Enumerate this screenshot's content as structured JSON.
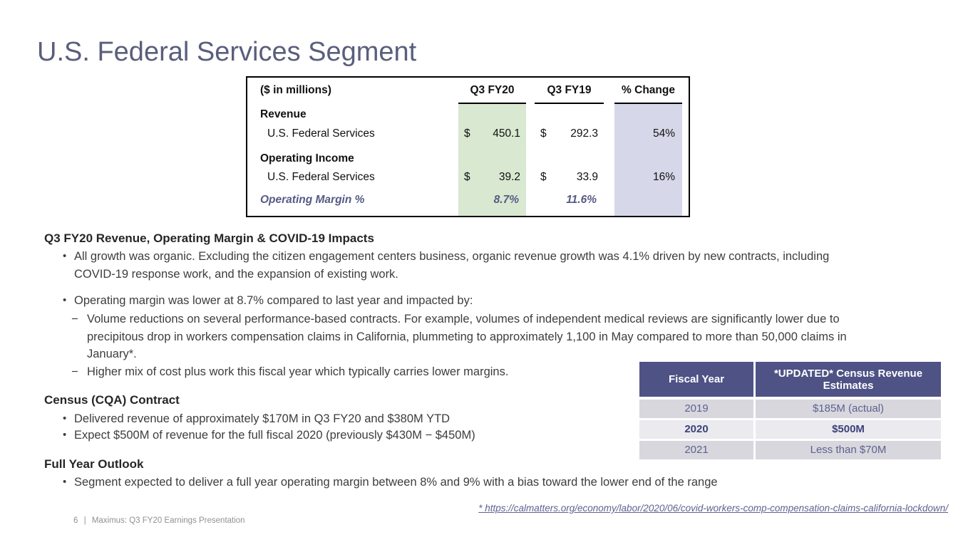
{
  "slide": {
    "title": "U.S. Federal Services Segment",
    "footer": {
      "page_number": "6",
      "separator": "|",
      "label": "Maximus: Q3 FY20 Earnings Presentation"
    },
    "footnote_link": "* https://calmatters.org/economy/labor/2020/06/covid-workers-comp-compensation-claims-california-lockdown/"
  },
  "financial_table": {
    "unit_label": "($ in millions)",
    "col_fy20": "Q3 FY20",
    "col_fy19": "Q3 FY19",
    "col_change": "% Change",
    "revenue": {
      "section_label": "Revenue",
      "row_label": "U.S. Federal Services",
      "fy20_sign": "$",
      "fy20_value": "450.1",
      "fy19_sign": "$",
      "fy19_value": "292.3",
      "change": "54%"
    },
    "operating_income": {
      "section_label": "Operating Income",
      "row_label": "U.S. Federal Services",
      "fy20_sign": "$",
      "fy20_value": "39.2",
      "fy19_sign": "$",
      "fy19_value": "33.9",
      "change": "16%"
    },
    "operating_margin": {
      "row_label": "Operating Margin %",
      "fy20_value": "8.7%",
      "fy19_value": "11.6%"
    },
    "colors": {
      "fy20_band": "#d9e8d1",
      "change_band": "#d6d7e8",
      "margin_text": "#565a86"
    }
  },
  "content": {
    "section1": {
      "heading": "Q3 FY20 Revenue, Operating Margin & COVID-19 Impacts",
      "bullet1": "All growth was organic. Excluding the citizen engagement centers business, organic revenue growth was 4.1% driven by new contracts, including COVID-19 response work, and the expansion of existing work.",
      "bullet2": "Operating margin was lower at 8.7% compared to last year and impacted by:",
      "sub1": "Volume reductions on several performance-based contracts. For example, volumes of independent medical reviews are significantly lower due to precipitous drop in workers compensation claims in California, plummeting to approximately 1,100 in May compared to more than 50,000 claims in January*.",
      "sub2": "Higher mix of cost plus work this fiscal year which typically carries lower margins."
    },
    "section2": {
      "heading": "Census (CQA) Contract",
      "bullet1": "Delivered revenue of approximately $170M in Q3 FY20 and $380M YTD",
      "bullet2": "Expect $500M of revenue for the full fiscal 2020 (previously $430M − $450M)"
    },
    "section3": {
      "heading": "Full Year Outlook",
      "bullet1": "Segment expected to deliver a full year operating margin between 8% and 9% with a bias toward the lower end of the range"
    }
  },
  "census_table": {
    "col_year": "Fiscal Year",
    "col_estimate": "*UPDATED* Census Revenue Estimates",
    "rows": [
      {
        "year": "2019",
        "estimate": "$185M (actual)"
      },
      {
        "year": "2020",
        "estimate": "$500M"
      },
      {
        "year": "2021",
        "estimate": "Less than $70M"
      }
    ],
    "colors": {
      "header_bg": "#4e5285",
      "row_bg": "#d7d7dd",
      "row_alt_bg": "#eaeaef",
      "text": "#5e6290",
      "bold_text": "#3d4277"
    }
  }
}
